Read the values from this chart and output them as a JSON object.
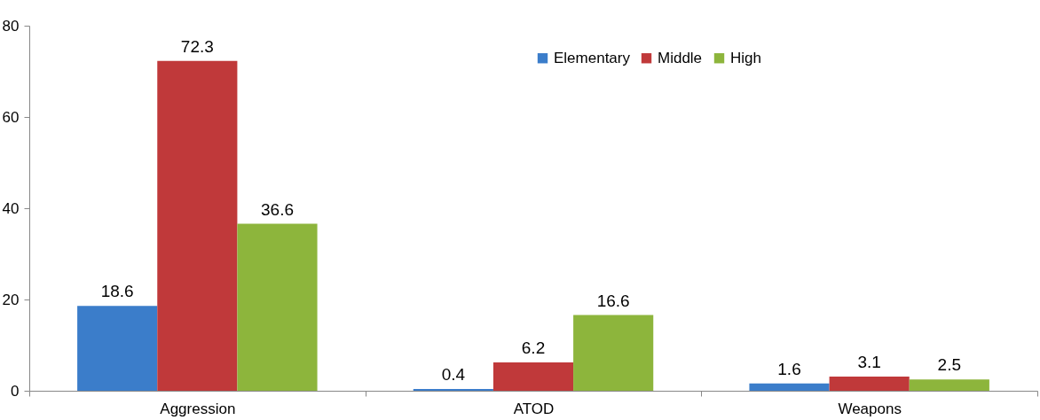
{
  "chart_data": {
    "type": "bar",
    "categories": [
      "Aggression",
      "ATOD",
      "Weapons"
    ],
    "series": [
      {
        "name": "Elementary",
        "color": "#3b7dca",
        "values": [
          18.6,
          0.4,
          1.6
        ]
      },
      {
        "name": "Middle",
        "color": "#c0393a",
        "values": [
          72.3,
          6.2,
          3.1
        ]
      },
      {
        "name": "High",
        "color": "#8db53c",
        "values": [
          36.6,
          16.6,
          2.5
        ]
      }
    ],
    "ylim": [
      0,
      80
    ],
    "yticks": [
      0,
      20,
      40,
      60,
      80
    ],
    "grid": false,
    "legend": "top",
    "data_labels": true
  }
}
